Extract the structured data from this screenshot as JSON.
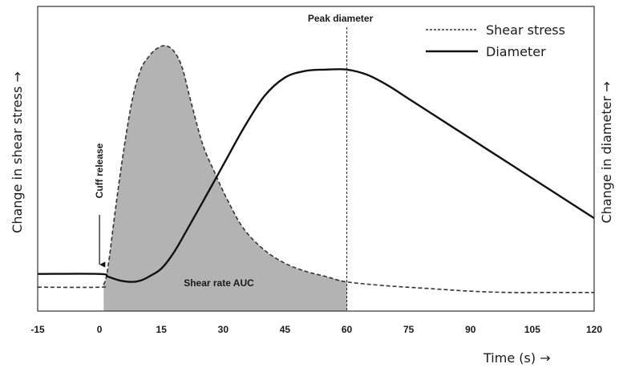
{
  "chart_data": {
    "type": "line",
    "title": "",
    "xlabel": "Time (s) →",
    "ylabel_left": "Change in shear stress →",
    "ylabel_right": "Change in diameter →",
    "xlim": [
      -15,
      120
    ],
    "xticks": [
      "-15",
      "0",
      "15",
      "30",
      "45",
      "60",
      "75",
      "90",
      "105",
      "120"
    ],
    "grid": false,
    "legend": {
      "position": "top-right",
      "entries": [
        "Shear stress",
        "Diameter"
      ]
    },
    "series": [
      {
        "name": "Shear stress",
        "style": "dashed",
        "color": "#333333",
        "unit": "relative",
        "x": [
          -15,
          0,
          1,
          2,
          4,
          6,
          8,
          10,
          12,
          14,
          16,
          18,
          20,
          22,
          25,
          28,
          31,
          35,
          40,
          45,
          50,
          55,
          60,
          70,
          80,
          90,
          100,
          110,
          120
        ],
        "y": [
          0.09,
          0.09,
          0.1,
          0.16,
          0.4,
          0.62,
          0.8,
          0.91,
          0.96,
          0.99,
          1.0,
          0.98,
          0.92,
          0.8,
          0.63,
          0.52,
          0.42,
          0.31,
          0.23,
          0.18,
          0.15,
          0.13,
          0.11,
          0.095,
          0.085,
          0.075,
          0.07,
          0.07,
          0.07
        ]
      },
      {
        "name": "Diameter",
        "style": "solid",
        "color": "#111111",
        "unit": "relative",
        "x": [
          -15,
          0,
          2,
          5,
          8,
          10,
          12,
          15,
          18,
          21,
          25,
          30,
          35,
          40,
          45,
          50,
          55,
          60,
          65,
          70,
          75,
          80,
          90,
          100,
          110,
          120
        ],
        "y": [
          0.14,
          0.14,
          0.13,
          0.115,
          0.11,
          0.115,
          0.13,
          0.16,
          0.22,
          0.3,
          0.41,
          0.55,
          0.69,
          0.81,
          0.88,
          0.905,
          0.91,
          0.91,
          0.89,
          0.85,
          0.8,
          0.75,
          0.65,
          0.55,
          0.45,
          0.35
        ]
      }
    ],
    "shaded_region": {
      "label": "Shear rate AUC",
      "series": "Shear stress",
      "x_from": 1,
      "x_to": 60,
      "color": "#b3b3b3"
    },
    "annotations": [
      {
        "id": "cuff",
        "text": "Cuff release",
        "x": 0
      },
      {
        "id": "peak",
        "text": "Peak diameter",
        "x": 60
      }
    ]
  }
}
